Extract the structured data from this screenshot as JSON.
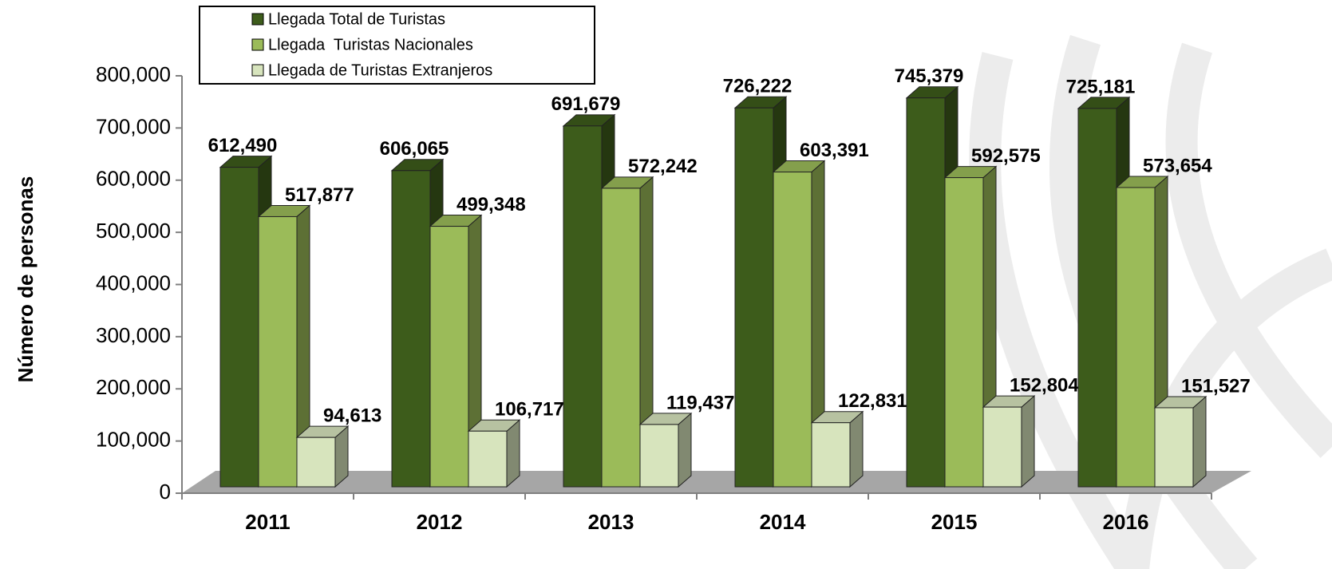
{
  "chart_data": {
    "type": "bar3d",
    "y_axis_label": "Número de personas",
    "categories": [
      "2011",
      "2012",
      "2013",
      "2014",
      "2015",
      "2016"
    ],
    "series": [
      {
        "name": "Llegada Total de Turistas",
        "color": "#3d5c1b",
        "values": [
          612490,
          606065,
          691679,
          726222,
          745379,
          725181
        ],
        "value_labels": [
          "612,490",
          "606,065",
          "691,679",
          "726,222",
          "745,379",
          "725,181"
        ]
      },
      {
        "name": "Llegada  Turistas Nacionales",
        "color": "#9bbb59",
        "values": [
          517877,
          499348,
          572242,
          603391,
          592575,
          573654
        ],
        "value_labels": [
          "517,877",
          "499,348",
          "572,242",
          "603,391",
          "592,575",
          "573,654"
        ]
      },
      {
        "name": "Llegada de Turistas Extranjeros",
        "color": "#d7e4bd",
        "values": [
          94613,
          106717,
          119437,
          122831,
          152804,
          151527
        ],
        "value_labels": [
          "94,613",
          "106,717",
          "119,437",
          "122,831",
          "152,804",
          "151,527"
        ]
      }
    ],
    "ylim": [
      0,
      800000
    ],
    "yticks": [
      0,
      {
        "value": 100000,
        "label": "100,000"
      },
      {
        "value": 200000,
        "label": "200,000"
      },
      {
        "value": 300000,
        "label": "300,000"
      },
      {
        "value": 400000,
        "label": "400,000"
      },
      {
        "value": 500000,
        "label": "500,000"
      },
      {
        "value": 600000,
        "label": "600,000"
      },
      {
        "value": 700000,
        "label": "700,000"
      },
      {
        "value": 800000,
        "label": "800,000"
      }
    ],
    "legend": "top-left"
  }
}
